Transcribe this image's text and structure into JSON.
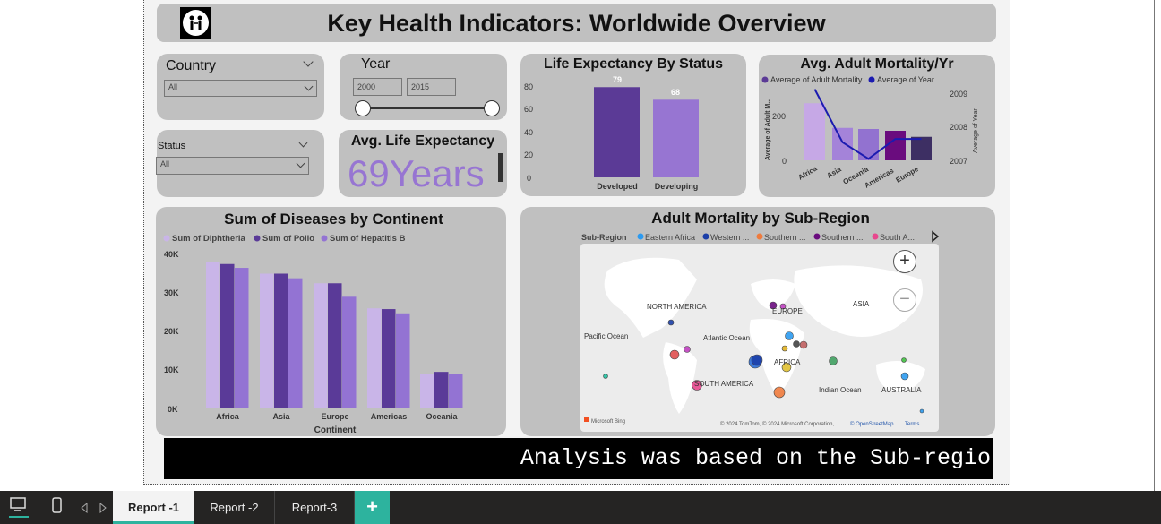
{
  "title": "Key Health Indicators: Worldwide Overview",
  "filters": {
    "country": {
      "label": "Country",
      "value": "All"
    },
    "year": {
      "label": "Year",
      "from": "2000",
      "to": "2015"
    },
    "status": {
      "label": "Status",
      "value": "All"
    }
  },
  "kpi": {
    "title": "Avg. Life Expectancy",
    "value": "69Years"
  },
  "life_chart": {
    "title": "Life Expectancy By Status",
    "ticks": [
      "80",
      "60",
      "40",
      "20",
      "0"
    ],
    "labels": [
      "Developed",
      "Developing"
    ],
    "value_labels": [
      "79",
      "68"
    ]
  },
  "mortality_chart": {
    "title": "Avg. Adult Mortality/Yr",
    "legend": [
      "Average of Adult Mortality",
      "Average of Year"
    ],
    "y_left_label": "Average of Adult M...",
    "y_right_label": "Average of Year",
    "left_ticks": [
      "200",
      "0"
    ],
    "right_ticks": [
      "2009",
      "2008",
      "2007"
    ],
    "categories": [
      "Africa",
      "Asia",
      "Oceania",
      "Americas",
      "Europe"
    ]
  },
  "disease_chart": {
    "title": "Sum of Diseases by Continent",
    "legend": [
      "Sum of Diphtheria",
      "Sum of Polio",
      "Sum of Hepatitis B"
    ],
    "ticks": [
      "40K",
      "30K",
      "20K",
      "10K",
      "0K"
    ],
    "categories": [
      "Africa",
      "Asia",
      "Europe",
      "Americas",
      "Oceania"
    ],
    "xlabel": "Continent"
  },
  "map": {
    "title": "Adult Mortality by Sub-Region",
    "legend_title": "Sub-Region",
    "legend": [
      "Eastern Africa",
      "Western ...",
      "Southern ...",
      "Southern ...",
      "South A..."
    ],
    "labels": {
      "north_america": "NORTH AMERICA",
      "europe": "EUROPE",
      "asia": "ASIA",
      "pacific": "Pacific Ocean",
      "atlantic": "Atlantic Ocean",
      "africa": "AFRICA",
      "south_america": "SOUTH AMERICA",
      "indian": "Indian Ocean",
      "australia": "AUSTRALIA"
    },
    "brand": "Microsoft Bing",
    "copyright": "© 2024 TomTom, © 2024 Microsoft Corporation,",
    "osm": "© OpenStreetMap",
    "terms": "Terms",
    "zoom_in": "+",
    "zoom_out": "−"
  },
  "ticker": "Analysis was based on the Sub-regio",
  "tabs": [
    "Report -1",
    "Report -2",
    "Report-3"
  ],
  "add_tab": "+",
  "chart_data": [
    {
      "type": "bar",
      "title": "Life Expectancy By Status",
      "categories": [
        "Developed",
        "Developing"
      ],
      "values": [
        79,
        68
      ],
      "ylim": [
        0,
        80
      ],
      "colors": [
        "#5b3a96",
        "#9775d2"
      ]
    },
    {
      "type": "bar",
      "title": "Avg. Adult Mortality/Yr",
      "categories": [
        "Africa",
        "Asia",
        "Oceania",
        "Americas",
        "Europe"
      ],
      "series": [
        {
          "name": "Average of Adult Mortality",
          "values": [
            255,
            145,
            140,
            132,
            105
          ]
        },
        {
          "name": "Average of Year",
          "values": [
            2009.2,
            2007.6,
            2007.1,
            2007.7,
            2007.7
          ]
        }
      ],
      "ylim": [
        0,
        300
      ],
      "y2lim": [
        2007,
        2009.5
      ],
      "colors": [
        "#c6a8e6",
        "#a483d9",
        "#9272d0",
        "#6a0c7e",
        "#3d2f63"
      ],
      "line_color": "#1b1bb0"
    },
    {
      "type": "bar",
      "title": "Sum of Diseases by Continent",
      "categories": [
        "Africa",
        "Asia",
        "Europe",
        "Americas",
        "Oceania"
      ],
      "series": [
        {
          "name": "Sum of Diphtheria",
          "values": [
            38000,
            35000,
            32500,
            26000,
            9000
          ]
        },
        {
          "name": "Sum of Polio",
          "values": [
            37500,
            35000,
            32500,
            25800,
            9500
          ]
        },
        {
          "name": "Sum of Hepatitis B",
          "values": [
            36500,
            33800,
            29000,
            24700,
            9000
          ]
        }
      ],
      "xlabel": "Continent",
      "ylim": [
        0,
        40000
      ],
      "colors": [
        "#c9b5e8",
        "#5a3a98",
        "#9373d3"
      ]
    }
  ]
}
